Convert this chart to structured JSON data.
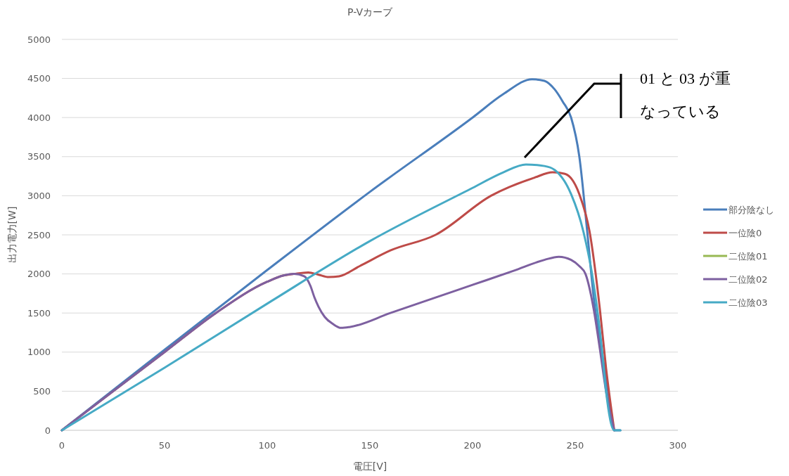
{
  "chart_data": {
    "type": "line",
    "title": "P-Vカーブ",
    "xlabel": "電圧[V]",
    "ylabel": "出力電力[W]",
    "xlim": [
      0,
      300
    ],
    "xticks": [
      0,
      50,
      100,
      150,
      200,
      250,
      300
    ],
    "ylim": [
      0,
      5000
    ],
    "yticks": [
      0,
      500,
      1000,
      1500,
      2000,
      2500,
      3000,
      3500,
      4000,
      4500,
      5000
    ],
    "grid": "y",
    "legend": "right",
    "marker": "none",
    "line_style": "solid",
    "annotations": [
      "01 と 03 が重なっている"
    ],
    "series": [
      {
        "name": "部分陰なし",
        "color": "#4a7ebb",
        "x": [
          0,
          50,
          100,
          150,
          200,
          215,
          229,
          235,
          240,
          244,
          248,
          252,
          256,
          259,
          263,
          266,
          269,
          272
        ],
        "values": [
          0,
          1030,
          2050,
          3050,
          4000,
          4300,
          4490,
          4470,
          4360,
          4200,
          4000,
          3500,
          2500,
          1700,
          1000,
          500,
          0,
          0
        ]
      },
      {
        "name": "一位陰0",
        "color": "#be4b48",
        "x": [
          0,
          25,
          50,
          75,
          100,
          108,
          113,
          120,
          125,
          130,
          135,
          145,
          160,
          182,
          209,
          230,
          239,
          245,
          252,
          257,
          262,
          265,
          269
        ],
        "values": [
          0,
          500,
          1000,
          1500,
          1900,
          1980,
          2000,
          2020,
          1990,
          1960,
          1970,
          2100,
          2300,
          2500,
          3000,
          3230,
          3300,
          3280,
          3020,
          2540,
          1550,
          800,
          0
        ]
      },
      {
        "name": "二位陰01",
        "color": "#98b954"
      },
      {
        "name": "二位陰02",
        "color": "#7d60a0",
        "x": [
          0,
          25,
          50,
          75,
          100,
          108,
          113,
          118,
          121,
          123,
          125,
          128,
          132,
          136,
          140,
          160,
          180,
          200,
          220,
          235,
          242,
          248,
          252,
          255,
          259,
          262,
          265,
          269
        ],
        "values": [
          0,
          500,
          1000,
          1500,
          1900,
          1980,
          2000,
          1970,
          1850,
          1700,
          1580,
          1450,
          1360,
          1310,
          1320,
          1500,
          1680,
          1860,
          2040,
          2180,
          2220,
          2180,
          2100,
          2000,
          1550,
          1040,
          500,
          0
        ]
      },
      {
        "name": "二位陰03",
        "color": "#46aac5",
        "x": [
          0,
          50,
          100,
          150,
          200,
          215,
          226,
          235,
          240,
          248,
          254,
          258,
          263,
          265,
          269,
          272
        ],
        "values": [
          0,
          800,
          1620,
          2420,
          3100,
          3300,
          3400,
          3380,
          3330,
          3020,
          2540,
          2030,
          1040,
          500,
          0,
          0
        ]
      }
    ]
  }
}
